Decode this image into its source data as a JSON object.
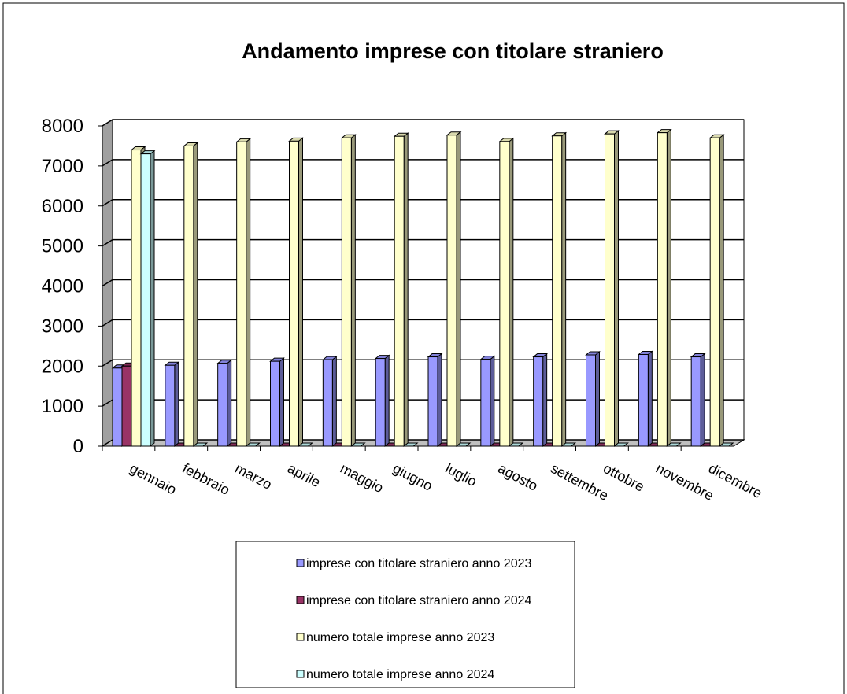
{
  "chart_data": {
    "type": "bar3d",
    "title": "Andamento imprese con titolare straniero",
    "categories": [
      "gennaio",
      "febbraio",
      "marzo",
      "aprile",
      "maggio",
      "giugno",
      "luglio",
      "agosto",
      "settembre",
      "ottobre",
      "novembre",
      "dicembre"
    ],
    "series": [
      {
        "name": "imprese con titolare straniero anno 2023",
        "color": "#9999ff",
        "values": [
          1950,
          2020,
          2070,
          2120,
          2160,
          2190,
          2230,
          2170,
          2230,
          2280,
          2290,
          2230
        ]
      },
      {
        "name": "imprese con titolare straniero anno 2024",
        "color": "#993366",
        "values": [
          2000,
          0,
          0,
          0,
          0,
          0,
          0,
          0,
          0,
          0,
          0,
          0
        ]
      },
      {
        "name": "numero totale imprese anno 2023",
        "color": "#ffffcc",
        "values": [
          7400,
          7500,
          7600,
          7620,
          7700,
          7740,
          7770,
          7610,
          7750,
          7800,
          7830,
          7700
        ]
      },
      {
        "name": "numero totale imprese anno 2024",
        "color": "#ccffff",
        "values": [
          7300,
          0,
          0,
          0,
          0,
          0,
          0,
          0,
          0,
          0,
          0,
          0
        ]
      }
    ],
    "ylim": [
      0,
      8000
    ],
    "yticks": [
      0,
      1000,
      2000,
      3000,
      4000,
      5000,
      6000,
      7000,
      8000
    ],
    "grid": true
  }
}
